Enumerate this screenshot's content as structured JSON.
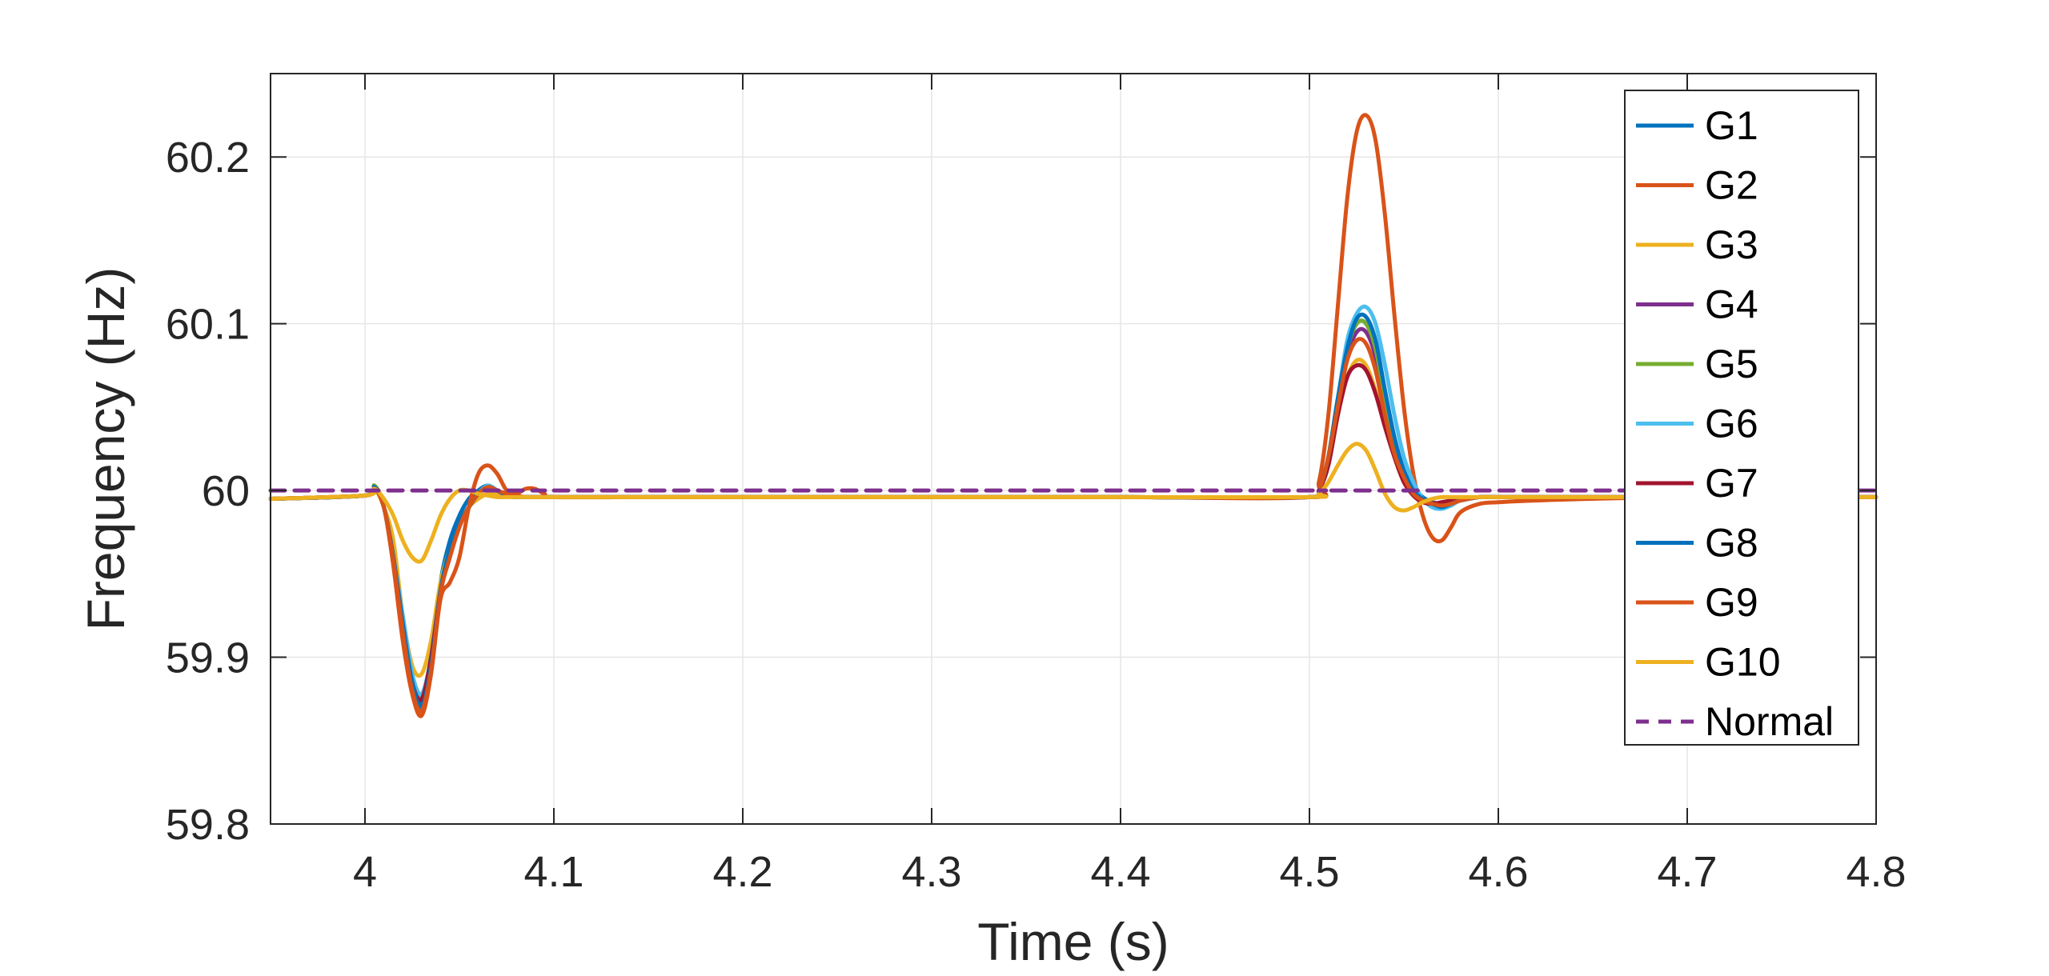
{
  "chart_data": {
    "type": "line",
    "title": "",
    "xlabel": "Time (s)",
    "ylabel": "Frequency (Hz)",
    "xlim": [
      3.95,
      4.8
    ],
    "ylim": [
      59.8,
      60.25
    ],
    "xticks": [
      4,
      4.1,
      4.2,
      4.3,
      4.4,
      4.5,
      4.6,
      4.7,
      4.8
    ],
    "xtick_labels": [
      "4",
      "4.1",
      "4.2",
      "4.3",
      "4.4",
      "4.5",
      "4.6",
      "4.7",
      "4.8"
    ],
    "yticks": [
      59.8,
      59.9,
      60,
      60.1,
      60.2
    ],
    "ytick_labels": [
      "59.8",
      "59.9",
      "60",
      "60.1",
      "60.2"
    ],
    "grid": true,
    "legend_position": "top-right",
    "x": [
      3.95,
      4.0,
      4.005,
      4.01,
      4.015,
      4.02,
      4.025,
      4.03,
      4.035,
      4.04,
      4.045,
      4.05,
      4.055,
      4.06,
      4.065,
      4.07,
      4.075,
      4.08,
      4.085,
      4.09,
      4.095,
      4.1,
      4.15,
      4.2,
      4.3,
      4.4,
      4.5,
      4.505,
      4.51,
      4.515,
      4.52,
      4.525,
      4.53,
      4.535,
      4.54,
      4.545,
      4.55,
      4.555,
      4.56,
      4.565,
      4.57,
      4.575,
      4.58,
      4.59,
      4.6,
      4.62,
      4.65,
      4.7,
      4.8
    ],
    "series": [
      {
        "name": "G1",
        "color": "#0072BD",
        "style": "solid",
        "values": [
          59.995,
          59.997,
          60.002,
          59.99,
          59.96,
          59.92,
          59.885,
          59.872,
          59.9,
          59.945,
          59.97,
          59.985,
          59.995,
          60.0,
          60.003,
          60.0,
          59.997,
          59.996,
          59.996,
          59.996,
          59.996,
          59.996,
          59.996,
          59.996,
          59.996,
          59.996,
          59.996,
          60.0,
          60.02,
          60.055,
          60.085,
          60.1,
          60.1,
          60.085,
          60.055,
          60.03,
          60.012,
          60.002,
          59.996,
          59.993,
          59.991,
          59.992,
          59.994,
          59.996,
          59.996,
          59.996,
          59.996,
          59.996,
          59.996
        ]
      },
      {
        "name": "G2",
        "color": "#D95319",
        "style": "solid",
        "values": [
          59.995,
          59.997,
          60.001,
          59.99,
          59.955,
          59.91,
          59.878,
          59.865,
          59.89,
          59.935,
          59.945,
          59.96,
          59.99,
          60.01,
          60.015,
          60.01,
          60.0,
          59.998,
          60.001,
          60.001,
          59.998,
          59.996,
          59.996,
          59.996,
          59.996,
          59.996,
          59.996,
          60.005,
          60.045,
          60.11,
          60.175,
          60.215,
          60.225,
          60.21,
          60.165,
          60.105,
          60.05,
          60.01,
          59.985,
          59.972,
          59.97,
          59.978,
          59.987,
          59.992,
          59.993,
          59.994,
          59.995,
          59.996,
          59.996
        ]
      },
      {
        "name": "G3",
        "color": "#EDB120",
        "style": "solid",
        "values": [
          59.995,
          59.997,
          60.001,
          59.99,
          59.97,
          59.925,
          59.895,
          59.89,
          59.91,
          59.945,
          59.965,
          59.98,
          59.99,
          59.995,
          59.998,
          59.998,
          59.997,
          59.996,
          59.996,
          59.996,
          59.996,
          59.996,
          59.996,
          59.996,
          59.996,
          59.996,
          59.996,
          60.0,
          60.015,
          60.045,
          60.068,
          60.078,
          60.075,
          60.06,
          60.04,
          60.02,
          60.005,
          59.997,
          59.993,
          59.992,
          59.993,
          59.994,
          59.995,
          59.996,
          59.996,
          59.996,
          59.996,
          59.996,
          59.996
        ]
      },
      {
        "name": "G4",
        "color": "#7E2F8E",
        "style": "solid",
        "values": [
          59.995,
          59.997,
          60.002,
          59.99,
          59.96,
          59.92,
          59.885,
          59.875,
          59.9,
          59.94,
          59.965,
          59.98,
          59.99,
          59.998,
          60.002,
          60.0,
          59.997,
          59.996,
          59.996,
          59.996,
          59.996,
          59.996,
          59.996,
          59.996,
          59.996,
          59.996,
          59.996,
          60.0,
          60.02,
          60.05,
          60.08,
          60.095,
          60.095,
          60.08,
          60.05,
          60.025,
          60.01,
          60.0,
          59.995,
          59.993,
          59.992,
          59.993,
          59.994,
          59.996,
          59.996,
          59.996,
          59.996,
          59.996,
          59.996
        ]
      },
      {
        "name": "G5",
        "color": "#77AC30",
        "style": "solid",
        "values": [
          59.995,
          59.997,
          60.003,
          59.99,
          59.96,
          59.92,
          59.885,
          59.876,
          59.9,
          59.94,
          59.965,
          59.98,
          59.99,
          59.998,
          60.002,
          60.0,
          59.997,
          59.996,
          59.996,
          59.996,
          59.996,
          59.996,
          59.996,
          59.996,
          59.996,
          59.996,
          59.996,
          60.0,
          60.02,
          60.055,
          60.085,
          60.1,
          60.1,
          60.085,
          60.055,
          60.028,
          60.01,
          60.0,
          59.995,
          59.992,
          59.99,
          59.992,
          59.994,
          59.996,
          59.996,
          59.996,
          59.996,
          59.996,
          59.996
        ]
      },
      {
        "name": "G6",
        "color": "#4DBEEE",
        "style": "solid",
        "values": [
          59.995,
          59.997,
          60.002,
          59.99,
          59.96,
          59.925,
          59.89,
          59.878,
          59.9,
          59.94,
          59.965,
          59.98,
          59.99,
          59.998,
          60.003,
          60.0,
          59.997,
          59.996,
          59.996,
          59.996,
          59.996,
          59.996,
          59.996,
          59.996,
          59.996,
          59.996,
          59.996,
          60.0,
          60.02,
          60.055,
          60.09,
          60.106,
          60.11,
          60.1,
          60.075,
          60.045,
          60.02,
          60.005,
          59.995,
          59.99,
          59.989,
          59.991,
          59.994,
          59.996,
          59.996,
          59.996,
          59.996,
          59.996,
          59.996
        ]
      },
      {
        "name": "G7",
        "color": "#A2142F",
        "style": "solid",
        "values": [
          59.995,
          59.997,
          60.002,
          59.99,
          59.96,
          59.92,
          59.885,
          59.875,
          59.9,
          59.94,
          59.965,
          59.98,
          59.99,
          59.998,
          60.002,
          60.0,
          59.997,
          59.996,
          59.996,
          59.996,
          59.996,
          59.996,
          59.996,
          59.996,
          59.996,
          59.996,
          59.996,
          60.0,
          60.015,
          60.045,
          60.068,
          60.075,
          60.072,
          60.058,
          60.038,
          60.02,
          60.005,
          59.997,
          59.993,
          59.992,
          59.993,
          59.994,
          59.995,
          59.996,
          59.996,
          59.996,
          59.996,
          59.996,
          59.996
        ]
      },
      {
        "name": "G8",
        "color": "#0072BD",
        "style": "solid",
        "values": [
          59.995,
          59.997,
          60.002,
          59.99,
          59.96,
          59.92,
          59.885,
          59.87,
          59.895,
          59.94,
          59.965,
          59.98,
          59.99,
          59.998,
          60.002,
          60.0,
          59.997,
          59.996,
          59.996,
          59.996,
          59.996,
          59.996,
          59.996,
          59.996,
          59.996,
          59.996,
          59.996,
          60.0,
          60.02,
          60.055,
          60.085,
          60.103,
          60.104,
          60.09,
          60.06,
          60.032,
          60.012,
          60.0,
          59.995,
          59.992,
          59.99,
          59.992,
          59.994,
          59.996,
          59.996,
          59.996,
          59.996,
          59.996,
          59.996
        ]
      },
      {
        "name": "G9",
        "color": "#D95319",
        "style": "solid",
        "values": [
          59.995,
          59.997,
          60.001,
          59.99,
          59.958,
          59.915,
          59.88,
          59.868,
          59.892,
          59.938,
          59.96,
          59.978,
          59.99,
          59.998,
          60.002,
          60.0,
          59.998,
          59.997,
          59.996,
          59.996,
          59.996,
          59.996,
          59.996,
          59.996,
          59.996,
          59.996,
          59.996,
          60.0,
          60.02,
          60.05,
          60.078,
          60.09,
          60.088,
          60.072,
          60.045,
          60.022,
          60.008,
          59.998,
          59.994,
          59.992,
          59.991,
          59.992,
          59.994,
          59.996,
          59.996,
          59.996,
          59.996,
          59.996,
          59.996
        ]
      },
      {
        "name": "G10",
        "color": "#EDB120",
        "style": "solid",
        "values": [
          59.995,
          59.997,
          60.001,
          59.995,
          59.985,
          59.97,
          59.96,
          59.958,
          59.97,
          59.985,
          59.995,
          60.0,
          60.0,
          59.998,
          59.997,
          59.996,
          59.996,
          59.996,
          59.996,
          59.996,
          59.996,
          59.996,
          59.996,
          59.996,
          59.996,
          59.996,
          59.996,
          59.998,
          60.005,
          60.015,
          60.024,
          60.028,
          60.024,
          60.012,
          59.998,
          59.99,
          59.988,
          59.99,
          59.993,
          59.995,
          59.996,
          59.996,
          59.996,
          59.996,
          59.996,
          59.996,
          59.996,
          59.996,
          59.996
        ]
      },
      {
        "name": "Normal",
        "color": "#7E2F8E",
        "style": "dashed",
        "values": [
          60,
          60,
          60,
          60,
          60,
          60,
          60,
          60,
          60,
          60,
          60,
          60,
          60,
          60,
          60,
          60,
          60,
          60,
          60,
          60,
          60,
          60,
          60,
          60,
          60,
          60,
          60,
          60,
          60,
          60,
          60,
          60,
          60,
          60,
          60,
          60,
          60,
          60,
          60,
          60,
          60,
          60,
          60,
          60,
          60,
          60,
          60,
          60,
          60
        ]
      }
    ]
  }
}
